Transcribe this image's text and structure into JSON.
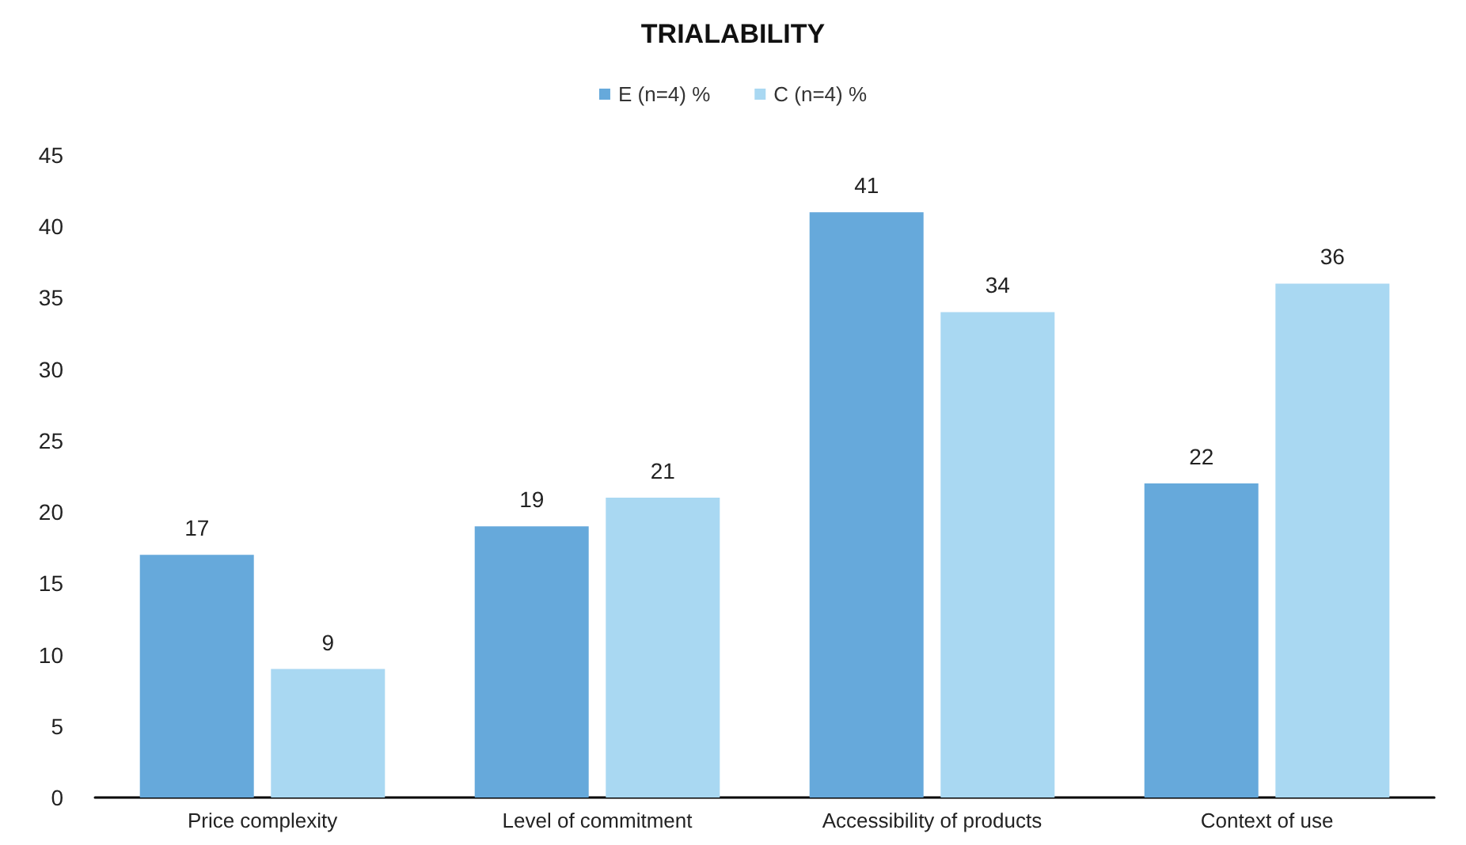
{
  "chart_data": {
    "type": "bar",
    "title": "TRIALABILITY",
    "categories": [
      "Price complexity",
      "Level of commitment",
      "Accessibility of products",
      "Context of use"
    ],
    "series": [
      {
        "name": "E (n=4) %",
        "color": "#66a9db",
        "values": [
          17,
          19,
          41,
          22
        ]
      },
      {
        "name": "C (n=4) %",
        "color": "#a9d8f2",
        "values": [
          9,
          21,
          34,
          36
        ]
      }
    ],
    "ylim": [
      0,
      45
    ],
    "yticks": [
      0,
      5,
      10,
      15,
      20,
      25,
      30,
      35,
      40,
      45
    ],
    "grid": false,
    "legend": "top",
    "data_labels": true
  }
}
